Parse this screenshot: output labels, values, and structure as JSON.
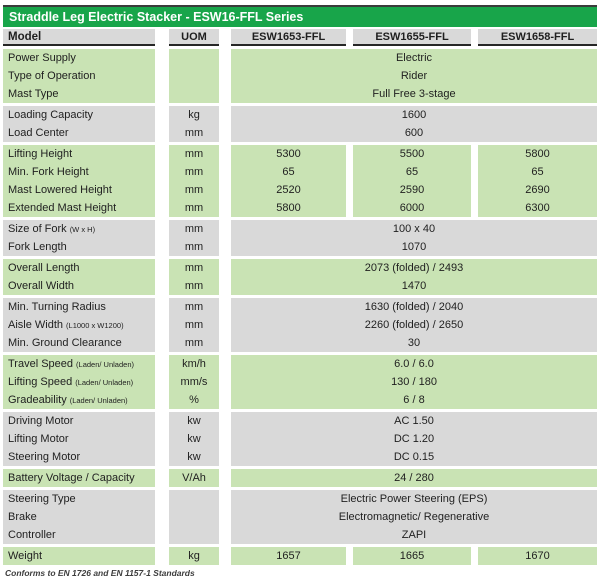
{
  "title": "Straddle Leg Electric Stacker - ESW16-FFL Series",
  "footer": "Conforms to EN 1726 and EN 1157-1 Standards",
  "columns": {
    "model_header": "Model",
    "uom_header": "UOM",
    "models": [
      "ESW1653-FFL",
      "ESW1655-FFL",
      "ESW1658-FFL"
    ]
  },
  "colors": {
    "header_green": "#18A54A",
    "row_green": "#C9E3B4",
    "row_gray": "#D9D9D9",
    "text": "#1F1F1F",
    "header_border": "#262626",
    "top_border": "#3B3B3B"
  },
  "groups": [
    {
      "tone": "green",
      "rows": [
        {
          "label": "Power Supply",
          "uom": "",
          "span": "Electric"
        },
        {
          "label": "Type of Operation",
          "uom": "",
          "span": "Rider"
        },
        {
          "label": "Mast Type",
          "uom": "",
          "span": "Full Free 3-stage"
        }
      ]
    },
    {
      "tone": "gray",
      "rows": [
        {
          "label": "Loading Capacity",
          "uom": "kg",
          "span": "1600"
        },
        {
          "label": "Load Center",
          "uom": "mm",
          "span": "600"
        }
      ]
    },
    {
      "tone": "green",
      "rows": [
        {
          "label": "Lifting Height",
          "uom": "mm",
          "values": [
            "5300",
            "5500",
            "5800"
          ]
        },
        {
          "label": "Min. Fork Height",
          "uom": "mm",
          "values": [
            "65",
            "65",
            "65"
          ]
        },
        {
          "label": "Mast Lowered Height",
          "uom": "mm",
          "values": [
            "2520",
            "2590",
            "2690"
          ]
        },
        {
          "label": "Extended Mast Height",
          "uom": "mm",
          "values": [
            "5800",
            "6000",
            "6300"
          ]
        }
      ]
    },
    {
      "tone": "gray",
      "rows": [
        {
          "label": "Size of Fork",
          "sub": "(W x H)",
          "uom": "mm",
          "span": "100 x 40"
        },
        {
          "label": "Fork Length",
          "uom": "mm",
          "span": "1070"
        }
      ]
    },
    {
      "tone": "green",
      "rows": [
        {
          "label": "Overall Length",
          "uom": "mm",
          "span": "2073 (folded) / 2493"
        },
        {
          "label": "Overall Width",
          "uom": "mm",
          "span": "1470"
        }
      ]
    },
    {
      "tone": "gray",
      "rows": [
        {
          "label": "Min. Turning Radius",
          "uom": "mm",
          "span": "1630 (folded) / 2040"
        },
        {
          "label": "Aisle Width",
          "sub": "(L1000 x W1200)",
          "uom": "mm",
          "span": "2260 (folded) / 2650"
        },
        {
          "label": "Min. Ground Clearance",
          "uom": "mm",
          "span": "30"
        }
      ]
    },
    {
      "tone": "green",
      "rows": [
        {
          "label": "Travel Speed",
          "sub": "(Laden/ Unladen)",
          "uom": "km/h",
          "span": "6.0 / 6.0"
        },
        {
          "label": "Lifting Speed",
          "sub": "(Laden/ Unladen)",
          "uom": "mm/s",
          "span": "130 / 180"
        },
        {
          "label": "Gradeability",
          "sub": "(Laden/ Unladen)",
          "uom": "%",
          "span": "6 / 8"
        }
      ]
    },
    {
      "tone": "gray",
      "rows": [
        {
          "label": "Driving Motor",
          "uom": "kw",
          "span": "AC 1.50"
        },
        {
          "label": "Lifting Motor",
          "uom": "kw",
          "span": "DC 1.20"
        },
        {
          "label": "Steering Motor",
          "uom": "kw",
          "span": "DC 0.15"
        }
      ]
    },
    {
      "tone": "green",
      "rows": [
        {
          "label": "Battery Voltage / Capacity",
          "uom": "V/Ah",
          "span": "24 / 280"
        }
      ]
    },
    {
      "tone": "gray",
      "rows": [
        {
          "label": "Steering Type",
          "uom": "",
          "span": "Electric Power Steering (EPS)"
        },
        {
          "label": "Brake",
          "uom": "",
          "span": "Electromagnetic/ Regenerative"
        },
        {
          "label": "Controller",
          "uom": "",
          "span": "ZAPI"
        }
      ]
    },
    {
      "tone": "green",
      "rows": [
        {
          "label": "Weight",
          "uom": "kg",
          "values": [
            "1657",
            "1665",
            "1670"
          ]
        }
      ]
    }
  ]
}
